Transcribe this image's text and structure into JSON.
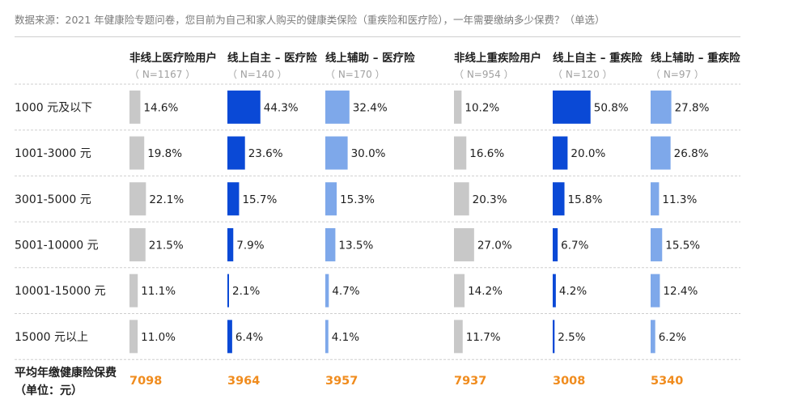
{
  "source_note": "数据来源：2021 年健康险专题问卷，您目前为自己和家人购买的健康类保险（重疾险和医疗险），一年需要缴纳多少保费？（单选）",
  "colors": {
    "gray": "#c8c8c8",
    "dark_blue": "#0a49d6",
    "light_blue": "#7ea8ea",
    "orange": "#f08c1e",
    "grid": "#cfcfcf"
  },
  "chart_data": {
    "type": "bar",
    "orientation": "horizontal",
    "categories": [
      "1000 元及以下",
      "1001-3000 元",
      "3001-5000 元",
      "5001-10000 元",
      "10001-15000 元",
      "15000 元以上"
    ],
    "series": [
      {
        "name": "非线上医疗险用户",
        "n_label": "（ N=1167 ）",
        "color": "gray",
        "values": [
          14.6,
          19.8,
          22.1,
          21.5,
          11.1,
          11.0
        ],
        "labels": [
          "14.6%",
          "19.8%",
          "22.1%",
          "21.5%",
          "11.1%",
          "11.0%"
        ],
        "avg": "7098"
      },
      {
        "name": "线上自主 – 医疗险",
        "n_label": "（ N=140 ）",
        "color": "dark_blue",
        "values": [
          44.3,
          23.6,
          15.7,
          7.9,
          2.1,
          6.4
        ],
        "labels": [
          "44.3%",
          "23.6%",
          "15.7%",
          "7.9%",
          "2.1%",
          "6.4%"
        ],
        "avg": "3964"
      },
      {
        "name": "线上辅助 – 医疗险",
        "n_label": "（ N=170 ）",
        "color": "light_blue",
        "values": [
          32.4,
          30.0,
          15.3,
          13.5,
          4.7,
          4.1
        ],
        "labels": [
          "32.4%",
          "30.0%",
          "15.3%",
          "13.5%",
          "4.7%",
          "4.1%"
        ],
        "avg": "3957"
      },
      {
        "name": "非线上重疾险用户",
        "n_label": "（ N=954 ）",
        "color": "gray",
        "values": [
          10.2,
          16.6,
          20.3,
          27.0,
          14.2,
          11.7
        ],
        "labels": [
          "10.2%",
          "16.6%",
          "20.3%",
          "27.0%",
          "14.2%",
          "11.7%"
        ],
        "avg": "7937"
      },
      {
        "name": "线上自主 – 重疾险",
        "n_label": "（ N=120 ）",
        "color": "dark_blue",
        "values": [
          50.8,
          20.0,
          15.8,
          6.7,
          4.2,
          2.5
        ],
        "labels": [
          "50.8%",
          "20.0%",
          "15.8%",
          "6.7%",
          "4.2%",
          "2.5%"
        ],
        "avg": "3008"
      },
      {
        "name": "线上辅助 – 重疾险",
        "n_label": "（ N=97 ）",
        "color": "light_blue",
        "values": [
          27.8,
          26.8,
          11.3,
          15.5,
          12.4,
          6.2
        ],
        "labels": [
          "27.8%",
          "26.8%",
          "11.3%",
          "15.5%",
          "12.4%",
          "6.2%"
        ],
        "avg": "5340"
      }
    ],
    "value_unit": "%",
    "footer_row_label": "平均年缴健康险保费（单位：元）"
  }
}
